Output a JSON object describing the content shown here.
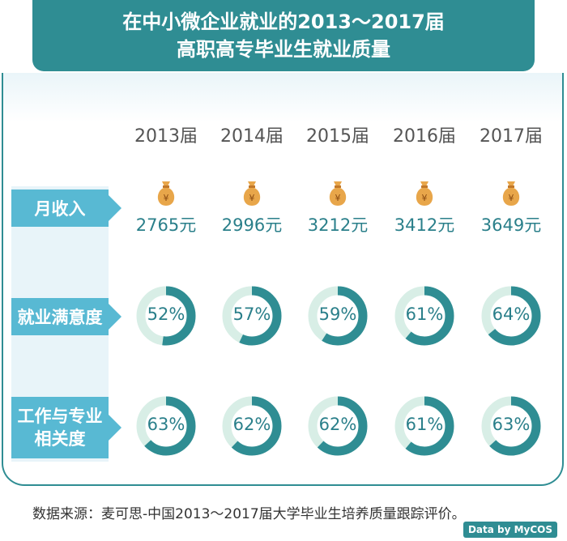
{
  "title": {
    "line1": "在中小微企业就业的2013～2017届",
    "line2": "高职高专毕业生就业质量"
  },
  "row_labels": {
    "income": "月收入",
    "satisfaction": "就业满意度",
    "relevance_line1": "工作与专业",
    "relevance_line2": "相关度"
  },
  "chart_data": {
    "type": "table",
    "categories": [
      "2013届",
      "2014届",
      "2015届",
      "2016届",
      "2017届"
    ],
    "income": [
      "2765元",
      "2996元",
      "3212元",
      "3412元",
      "3649元"
    ],
    "satisfaction_values": [
      52,
      57,
      59,
      61,
      64
    ],
    "satisfaction_labels": [
      "52%",
      "57%",
      "59%",
      "61%",
      "64%"
    ],
    "relevance_values": [
      63,
      62,
      62,
      61,
      63
    ],
    "relevance_labels": [
      "63%",
      "62%",
      "62%",
      "61%",
      "63%"
    ]
  },
  "source": "数据来源：麦可思-中国2013～2017届大学毕业生培养质量跟踪评价。",
  "logo": "Data by MyCOS",
  "colors": {
    "accent": "#2f8d93",
    "label_bg": "#58b9d3",
    "ring_track": "#d8eee6",
    "ring_fill": "#2f8d93",
    "text_teal": "#2a7f8a",
    "bag": "#e8a64a"
  },
  "icons": {
    "income": "money-bag-icon"
  }
}
